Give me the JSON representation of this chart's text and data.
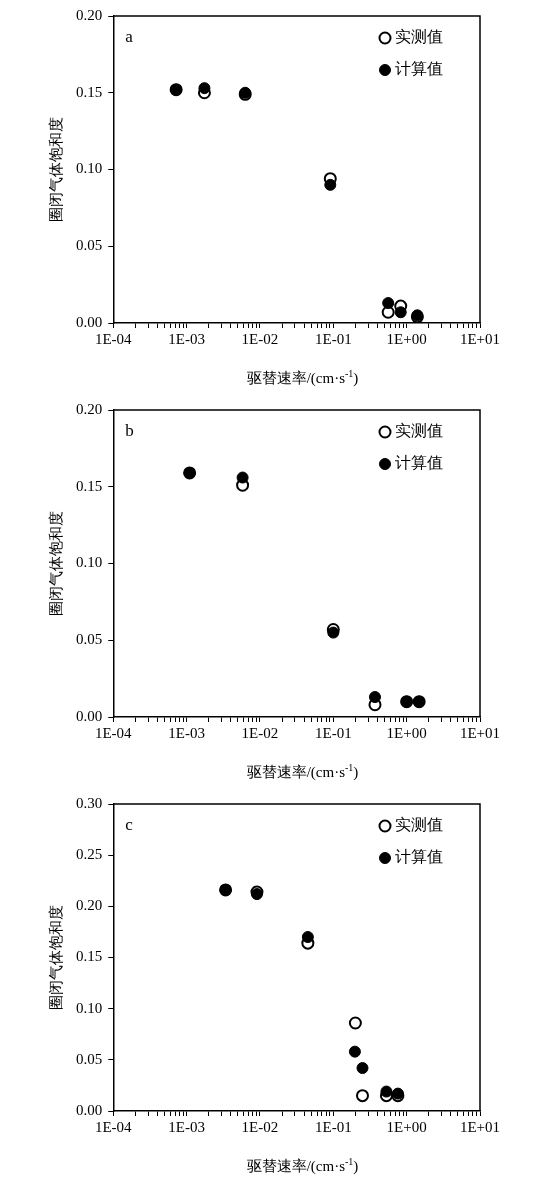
{
  "chart_data": [
    {
      "type": "scatter",
      "annotations": [
        "a"
      ],
      "xlabel": "驱替速率/(cm·s$^{-1}$)",
      "ylabel": "圈闭气体饱和度",
      "log": "x",
      "legend": "top right",
      "marker": "circle",
      "xlim": [
        0.0001,
        10
      ],
      "ylim": [
        0,
        0.2
      ],
      "xticks": [
        {
          "value": 0.0001,
          "label": "1E-04"
        },
        {
          "value": 0.0002,
          "label": null
        },
        {
          "value": 0.0003,
          "label": null
        },
        {
          "value": 0.0004,
          "label": null
        },
        {
          "value": 0.0005,
          "label": null
        },
        {
          "value": 0.0006,
          "label": null
        },
        {
          "value": 0.0007,
          "label": null
        },
        {
          "value": 0.0008,
          "label": null
        },
        {
          "value": 0.0009,
          "label": null
        },
        {
          "value": 0.001,
          "label": "1E-03"
        },
        {
          "value": 0.002,
          "label": null
        },
        {
          "value": 0.003,
          "label": null
        },
        {
          "value": 0.004,
          "label": null
        },
        {
          "value": 0.005,
          "label": null
        },
        {
          "value": 0.006,
          "label": null
        },
        {
          "value": 0.007,
          "label": null
        },
        {
          "value": 0.008,
          "label": null
        },
        {
          "value": 0.009,
          "label": null
        },
        {
          "value": 0.01,
          "label": "1E-02"
        },
        {
          "value": 0.02,
          "label": null
        },
        {
          "value": 0.03,
          "label": null
        },
        {
          "value": 0.04,
          "label": null
        },
        {
          "value": 0.05,
          "label": null
        },
        {
          "value": 0.06,
          "label": null
        },
        {
          "value": 0.07,
          "label": null
        },
        {
          "value": 0.08,
          "label": null
        },
        {
          "value": 0.09,
          "label": null
        },
        {
          "value": 0.1,
          "label": "1E-01"
        },
        {
          "value": 0.2,
          "label": null
        },
        {
          "value": 0.3,
          "label": null
        },
        {
          "value": 0.4,
          "label": null
        },
        {
          "value": 0.5,
          "label": null
        },
        {
          "value": 0.6,
          "label": null
        },
        {
          "value": 0.7,
          "label": null
        },
        {
          "value": 0.8,
          "label": null
        },
        {
          "value": 0.9,
          "label": null
        },
        {
          "value": 1,
          "label": "1E+00"
        },
        {
          "value": 2,
          "label": null
        },
        {
          "value": 3,
          "label": null
        },
        {
          "value": 4,
          "label": null
        },
        {
          "value": 5,
          "label": null
        },
        {
          "value": 6,
          "label": null
        },
        {
          "value": 7,
          "label": null
        },
        {
          "value": 8,
          "label": null
        },
        {
          "value": 9,
          "label": null
        },
        {
          "value": 10,
          "label": "1E+01"
        }
      ],
      "yticks": [
        {
          "value": 0,
          "label": "0.00"
        },
        {
          "value": 0.05,
          "label": "0.05"
        },
        {
          "value": 0.1,
          "label": "0.10"
        },
        {
          "value": 0.15,
          "label": "0.15"
        },
        {
          "value": 0.2,
          "label": "0.20"
        }
      ],
      "series": [
        {
          "name": "实测值",
          "color": "#000000",
          "x": [
            0.00072,
            0.00175,
            0.0063,
            0.091,
            0.56,
            0.83,
            1.4
          ],
          "values": [
            0.152,
            0.15,
            0.149,
            0.094,
            0.007,
            0.011,
            0.004
          ]
        },
        {
          "name": "计算值",
          "color": "#000000",
          "x": [
            0.00072,
            0.00175,
            0.0063,
            0.091,
            0.56,
            0.83,
            1.4
          ],
          "values": [
            0.152,
            0.153,
            0.15,
            0.09,
            0.013,
            0.007,
            0.005
          ]
        }
      ]
    },
    {
      "type": "scatter",
      "annotations": [
        "b"
      ],
      "xlabel": "驱替速率/(cm·s$^{-1}$)",
      "ylabel": "圈闭气体饱和度",
      "log": "x",
      "legend": "top right",
      "marker": "circle",
      "xlim": [
        0.0001,
        10
      ],
      "ylim": [
        0,
        0.2
      ],
      "xticks": [
        {
          "value": 0.0001,
          "label": "1E-04"
        },
        {
          "value": 0.0002,
          "label": null
        },
        {
          "value": 0.0003,
          "label": null
        },
        {
          "value": 0.0004,
          "label": null
        },
        {
          "value": 0.0005,
          "label": null
        },
        {
          "value": 0.0006,
          "label": null
        },
        {
          "value": 0.0007,
          "label": null
        },
        {
          "value": 0.0008,
          "label": null
        },
        {
          "value": 0.0009,
          "label": null
        },
        {
          "value": 0.001,
          "label": "1E-03"
        },
        {
          "value": 0.002,
          "label": null
        },
        {
          "value": 0.003,
          "label": null
        },
        {
          "value": 0.004,
          "label": null
        },
        {
          "value": 0.005,
          "label": null
        },
        {
          "value": 0.006,
          "label": null
        },
        {
          "value": 0.007,
          "label": null
        },
        {
          "value": 0.008,
          "label": null
        },
        {
          "value": 0.009,
          "label": null
        },
        {
          "value": 0.01,
          "label": "1E-02"
        },
        {
          "value": 0.02,
          "label": null
        },
        {
          "value": 0.03,
          "label": null
        },
        {
          "value": 0.04,
          "label": null
        },
        {
          "value": 0.05,
          "label": null
        },
        {
          "value": 0.06,
          "label": null
        },
        {
          "value": 0.07,
          "label": null
        },
        {
          "value": 0.08,
          "label": null
        },
        {
          "value": 0.09,
          "label": null
        },
        {
          "value": 0.1,
          "label": "1E-01"
        },
        {
          "value": 0.2,
          "label": null
        },
        {
          "value": 0.3,
          "label": null
        },
        {
          "value": 0.4,
          "label": null
        },
        {
          "value": 0.5,
          "label": null
        },
        {
          "value": 0.6,
          "label": null
        },
        {
          "value": 0.7,
          "label": null
        },
        {
          "value": 0.8,
          "label": null
        },
        {
          "value": 0.9,
          "label": null
        },
        {
          "value": 1,
          "label": "1E+00"
        },
        {
          "value": 2,
          "label": null
        },
        {
          "value": 3,
          "label": null
        },
        {
          "value": 4,
          "label": null
        },
        {
          "value": 5,
          "label": null
        },
        {
          "value": 6,
          "label": null
        },
        {
          "value": 7,
          "label": null
        },
        {
          "value": 8,
          "label": null
        },
        {
          "value": 9,
          "label": null
        },
        {
          "value": 10,
          "label": "1E+01"
        }
      ],
      "yticks": [
        {
          "value": 0,
          "label": "0.00"
        },
        {
          "value": 0.05,
          "label": "0.05"
        },
        {
          "value": 0.1,
          "label": "0.10"
        },
        {
          "value": 0.15,
          "label": "0.15"
        },
        {
          "value": 0.2,
          "label": "0.20"
        }
      ],
      "series": [
        {
          "name": "实测值",
          "color": "#000000",
          "x": [
            0.0011,
            0.0058,
            0.1,
            0.37,
            1.0,
            1.48
          ],
          "values": [
            0.159,
            0.151,
            0.057,
            0.008,
            0.01,
            0.01
          ]
        },
        {
          "name": "计算值",
          "color": "#000000",
          "x": [
            0.0011,
            0.0058,
            0.1,
            0.37,
            1.0,
            1.48
          ],
          "values": [
            0.159,
            0.156,
            0.055,
            0.013,
            0.01,
            0.01
          ]
        }
      ]
    },
    {
      "type": "scatter",
      "annotations": [
        "c"
      ],
      "xlabel": "驱替速率/(cm·s$^{-1}$)",
      "ylabel": "圈闭气体饱和度",
      "log": "x",
      "legend": "top right",
      "marker": "circle",
      "xlim": [
        0.0001,
        10
      ],
      "ylim": [
        0,
        0.3
      ],
      "xticks": [
        {
          "value": 0.0001,
          "label": "1E-04"
        },
        {
          "value": 0.0002,
          "label": null
        },
        {
          "value": 0.0003,
          "label": null
        },
        {
          "value": 0.0004,
          "label": null
        },
        {
          "value": 0.0005,
          "label": null
        },
        {
          "value": 0.0006,
          "label": null
        },
        {
          "value": 0.0007,
          "label": null
        },
        {
          "value": 0.0008,
          "label": null
        },
        {
          "value": 0.0009,
          "label": null
        },
        {
          "value": 0.001,
          "label": "1E-03"
        },
        {
          "value": 0.002,
          "label": null
        },
        {
          "value": 0.003,
          "label": null
        },
        {
          "value": 0.004,
          "label": null
        },
        {
          "value": 0.005,
          "label": null
        },
        {
          "value": 0.006,
          "label": null
        },
        {
          "value": 0.007,
          "label": null
        },
        {
          "value": 0.008,
          "label": null
        },
        {
          "value": 0.009,
          "label": null
        },
        {
          "value": 0.01,
          "label": "1E-02"
        },
        {
          "value": 0.02,
          "label": null
        },
        {
          "value": 0.03,
          "label": null
        },
        {
          "value": 0.04,
          "label": null
        },
        {
          "value": 0.05,
          "label": null
        },
        {
          "value": 0.06,
          "label": null
        },
        {
          "value": 0.07,
          "label": null
        },
        {
          "value": 0.08,
          "label": null
        },
        {
          "value": 0.09,
          "label": null
        },
        {
          "value": 0.1,
          "label": "1E-01"
        },
        {
          "value": 0.2,
          "label": null
        },
        {
          "value": 0.3,
          "label": null
        },
        {
          "value": 0.4,
          "label": null
        },
        {
          "value": 0.5,
          "label": null
        },
        {
          "value": 0.6,
          "label": null
        },
        {
          "value": 0.7,
          "label": null
        },
        {
          "value": 0.8,
          "label": null
        },
        {
          "value": 0.9,
          "label": null
        },
        {
          "value": 1,
          "label": "1E+00"
        },
        {
          "value": 2,
          "label": null
        },
        {
          "value": 3,
          "label": null
        },
        {
          "value": 4,
          "label": null
        },
        {
          "value": 5,
          "label": null
        },
        {
          "value": 6,
          "label": null
        },
        {
          "value": 7,
          "label": null
        },
        {
          "value": 8,
          "label": null
        },
        {
          "value": 9,
          "label": null
        },
        {
          "value": 10,
          "label": "1E+01"
        }
      ],
      "yticks": [
        {
          "value": 0,
          "label": "0.00"
        },
        {
          "value": 0.05,
          "label": "0.05"
        },
        {
          "value": 0.1,
          "label": "0.10"
        },
        {
          "value": 0.15,
          "label": "0.15"
        },
        {
          "value": 0.2,
          "label": "0.20"
        },
        {
          "value": 0.25,
          "label": "0.25"
        },
        {
          "value": 0.3,
          "label": "0.30"
        }
      ],
      "series": [
        {
          "name": "实测值",
          "color": "#000000",
          "x": [
            0.0034,
            0.0091,
            0.045,
            0.2,
            0.25,
            0.53,
            0.76
          ],
          "values": [
            0.216,
            0.214,
            0.164,
            0.086,
            0.015,
            0.015,
            0.015
          ]
        },
        {
          "name": "计算值",
          "color": "#000000",
          "x": [
            0.0034,
            0.0091,
            0.045,
            0.197,
            0.25,
            0.53,
            0.76
          ],
          "values": [
            0.216,
            0.212,
            0.17,
            0.058,
            0.042,
            0.019,
            0.017
          ]
        }
      ]
    }
  ]
}
